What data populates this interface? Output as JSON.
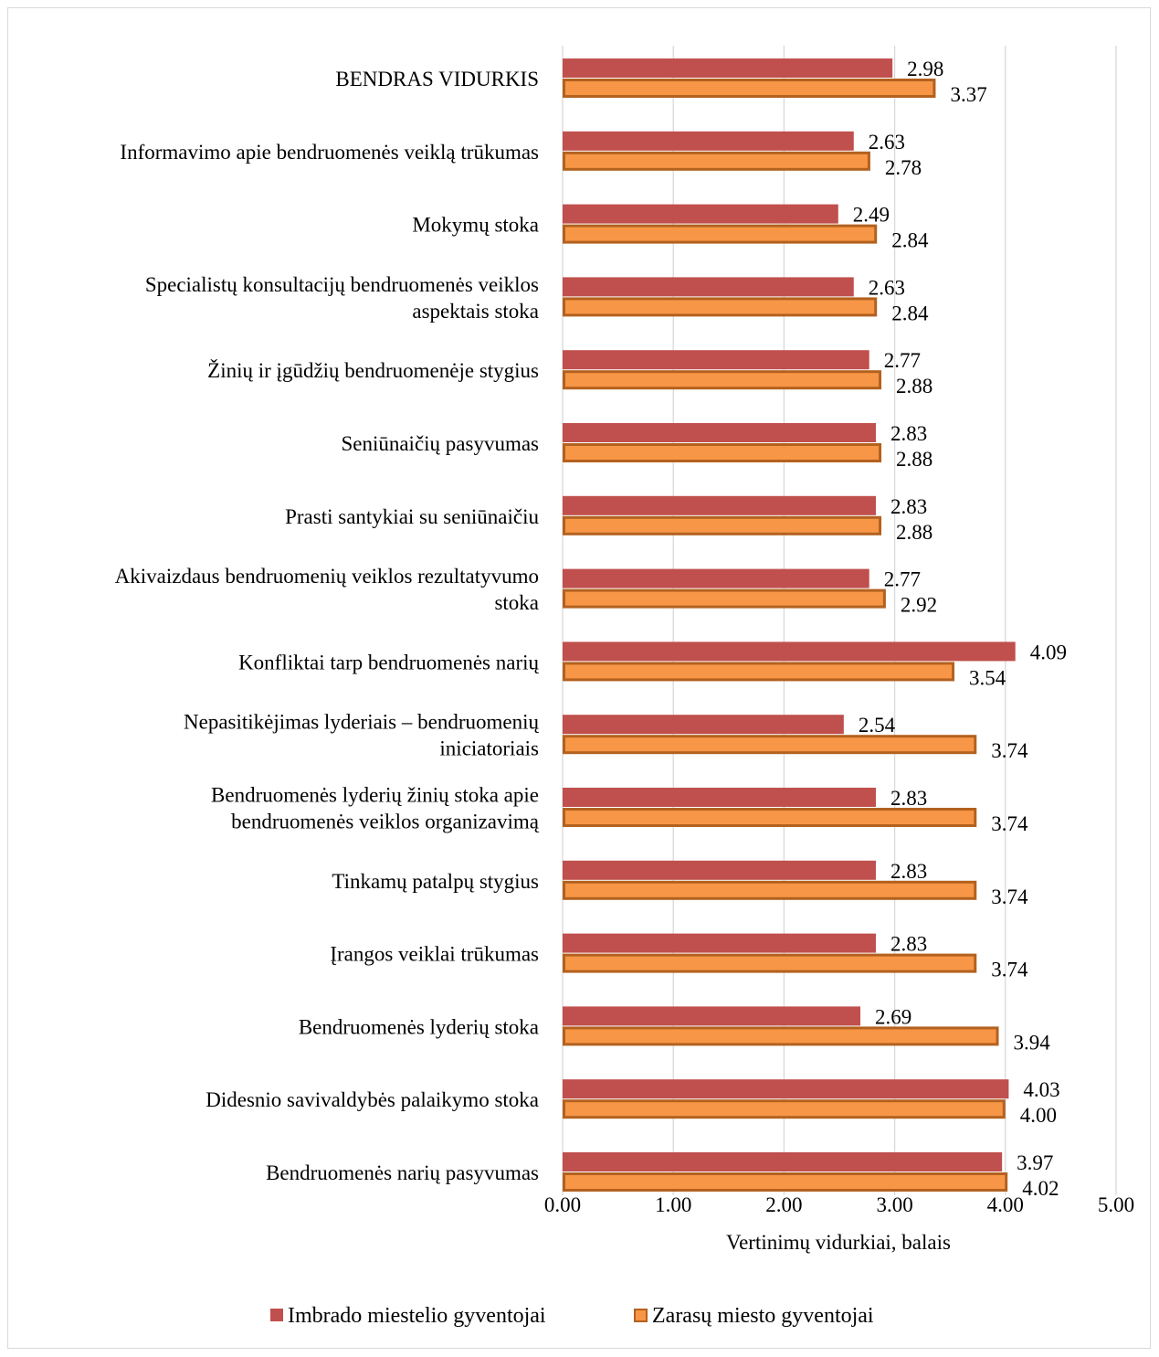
{
  "chart_data": {
    "type": "bar",
    "orientation": "horizontal",
    "categories": [
      [
        "BENDRAS VIDURKIS"
      ],
      [
        "Informavimo apie bendruomenės veiklą trūkumas"
      ],
      [
        "Mokymų stoka"
      ],
      [
        "Specialistų konsultacijų bendruomenės veiklos",
        "aspektais stoka"
      ],
      [
        "Žinių ir įgūdžių bendruomenėje stygius"
      ],
      [
        "Seniūnaičių pasyvumas"
      ],
      [
        "Prasti santykiai su seniūnaičiu"
      ],
      [
        "Akivaizdaus bendruomenių veiklos rezultatyvumo",
        "stoka"
      ],
      [
        "Konfliktai tarp bendruomenės narių"
      ],
      [
        "Nepasitikėjimas lyderiais – bendruomenių",
        "iniciatoriais"
      ],
      [
        "Bendruomenės lyderių žinių stoka apie",
        "bendruomenės veiklos organizavimą"
      ],
      [
        "Tinkamų patalpų stygius"
      ],
      [
        "Įrangos veiklai trūkumas"
      ],
      [
        "Bendruomenės lyderių stoka"
      ],
      [
        "Didesnio savivaldybės palaikymo stoka"
      ],
      [
        "Bendruomenės narių pasyvumas"
      ]
    ],
    "series": [
      {
        "name": "Imbrado miestelio gyventojai",
        "color": "#c0504d",
        "values": [
          2.98,
          2.63,
          2.49,
          2.63,
          2.77,
          2.83,
          2.83,
          2.77,
          4.09,
          2.54,
          2.83,
          2.83,
          2.83,
          2.69,
          4.03,
          3.97
        ],
        "labels": [
          "2.98",
          "2.63",
          "2.49",
          "2.63",
          "2.77",
          "2.83",
          "2.83",
          "2.77",
          "4.09",
          "2.54",
          "2.83",
          "2.83",
          "2.83",
          "2.69",
          "4.03",
          "3.97"
        ]
      },
      {
        "name": "Zarasų miesto gyventojai",
        "color": "#f79646",
        "border_color": "#b3611f",
        "values": [
          3.37,
          2.78,
          2.84,
          2.84,
          2.88,
          2.88,
          2.88,
          2.92,
          3.54,
          3.74,
          3.74,
          3.74,
          3.74,
          3.94,
          4.0,
          4.02
        ],
        "labels": [
          "3.37",
          "2.78",
          "2.84",
          "2.84",
          "2.88",
          "2.88",
          "2.88",
          "2.92",
          "3.54",
          "3.74",
          "3.74",
          "3.74",
          "3.74",
          "3.94",
          "4.00",
          "4.02"
        ]
      }
    ],
    "xlabel": "Vertinimų vidurkiai, balais",
    "xlim": [
      0,
      5
    ],
    "xticks": [
      0,
      1,
      2,
      3,
      4,
      5
    ],
    "xtick_labels": [
      "0.00",
      "1.00",
      "2.00",
      "3.00",
      "4.00",
      "5.00"
    ],
    "grid": true,
    "legend_position": "bottom"
  }
}
